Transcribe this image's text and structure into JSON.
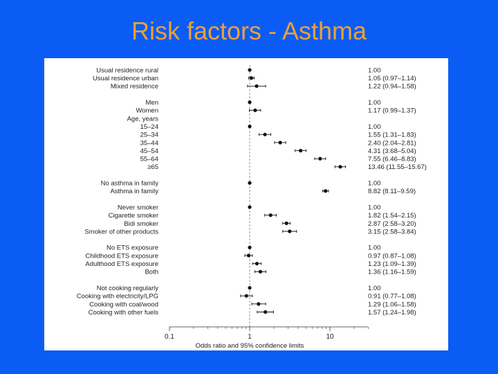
{
  "slide": {
    "title": "Risk factors - Asthma"
  },
  "chart_data": {
    "type": "forest",
    "xscale": "log",
    "xlabel": "Odds ratio and 95% confidence limits",
    "xticks": [
      "0.1",
      "1",
      "10"
    ],
    "xlim": [
      0.1,
      30
    ],
    "reference_line": 1,
    "rows": [
      {
        "label": "Usual residence rural",
        "or": 1.0,
        "lo": 1.0,
        "hi": 1.0,
        "text": "1.00"
      },
      {
        "label": "Usual residence urban",
        "or": 1.05,
        "lo": 0.97,
        "hi": 1.14,
        "text": "1.05 (0.97–1.14)"
      },
      {
        "label": "Mixed residence",
        "or": 1.22,
        "lo": 0.94,
        "hi": 1.58,
        "text": "1.22 (0.94–1.58)"
      },
      {
        "label": "",
        "spacer": true
      },
      {
        "label": "Men",
        "or": 1.0,
        "lo": 1.0,
        "hi": 1.0,
        "text": "1.00"
      },
      {
        "label": "Women",
        "or": 1.17,
        "lo": 0.99,
        "hi": 1.37,
        "text": "1.17 (0.99–1.37)"
      },
      {
        "label": "Age, years",
        "header": true
      },
      {
        "label": "15–24",
        "or": 1.0,
        "lo": 1.0,
        "hi": 1.0,
        "text": "1.00"
      },
      {
        "label": "25–34",
        "or": 1.55,
        "lo": 1.31,
        "hi": 1.83,
        "text": "1.55 (1.31–1.83)"
      },
      {
        "label": "35–44",
        "or": 2.4,
        "lo": 2.04,
        "hi": 2.81,
        "text": "2.40 (2.04–2.81)"
      },
      {
        "label": "45–54",
        "or": 4.31,
        "lo": 3.68,
        "hi": 5.04,
        "text": "4.31 (3.68–5.04)"
      },
      {
        "label": "55–64",
        "or": 7.55,
        "lo": 6.46,
        "hi": 8.83,
        "text": "7.55 (6.46–8.83)"
      },
      {
        "label": "≥65",
        "or": 13.46,
        "lo": 11.55,
        "hi": 15.67,
        "text": "13.46 (11.55–15.67)"
      },
      {
        "label": "",
        "spacer": true
      },
      {
        "label": "No asthma in family",
        "or": 1.0,
        "lo": 1.0,
        "hi": 1.0,
        "text": "1.00"
      },
      {
        "label": "Asthma in family",
        "or": 8.82,
        "lo": 8.11,
        "hi": 9.59,
        "text": "8.82 (8.11–9.59)"
      },
      {
        "label": "",
        "spacer": true
      },
      {
        "label": "Never smoker",
        "or": 1.0,
        "lo": 1.0,
        "hi": 1.0,
        "text": "1.00"
      },
      {
        "label": "Cigarette smoker",
        "or": 1.82,
        "lo": 1.54,
        "hi": 2.15,
        "text": "1.82 (1.54–2.15)"
      },
      {
        "label": "Bidi smoker",
        "or": 2.87,
        "lo": 2.58,
        "hi": 3.2,
        "text": "2.87 (2.58–3.20)"
      },
      {
        "label": "Smoker of other products",
        "or": 3.15,
        "lo": 2.58,
        "hi": 3.84,
        "text": "3.15 (2.58–3.84)"
      },
      {
        "label": "",
        "spacer": true
      },
      {
        "label": "No ETS exposure",
        "or": 1.0,
        "lo": 1.0,
        "hi": 1.0,
        "text": "1.00"
      },
      {
        "label": "Childhood ETS exposure",
        "or": 0.97,
        "lo": 0.87,
        "hi": 1.08,
        "text": "0.97 (0.87–1.08)"
      },
      {
        "label": "Adulthood ETS exposure",
        "or": 1.23,
        "lo": 1.09,
        "hi": 1.39,
        "text": "1.23 (1.09–1.39)"
      },
      {
        "label": "Both",
        "or": 1.36,
        "lo": 1.16,
        "hi": 1.59,
        "text": "1.36 (1.16–1.59)"
      },
      {
        "label": "",
        "spacer": true
      },
      {
        "label": "Not cooking regularly",
        "or": 1.0,
        "lo": 1.0,
        "hi": 1.0,
        "text": "1.00"
      },
      {
        "label": "Cooking with electricity/LPG",
        "or": 0.91,
        "lo": 0.77,
        "hi": 1.08,
        "text": "0.91 (0.77–1.08)"
      },
      {
        "label": "Cooking with coal/wood",
        "or": 1.29,
        "lo": 1.06,
        "hi": 1.58,
        "text": "1.29 (1.06–1.58)"
      },
      {
        "label": "Cooking with other fuels",
        "or": 1.57,
        "lo": 1.24,
        "hi": 1.98,
        "text": "1.57 (1.24–1.98)"
      }
    ]
  }
}
